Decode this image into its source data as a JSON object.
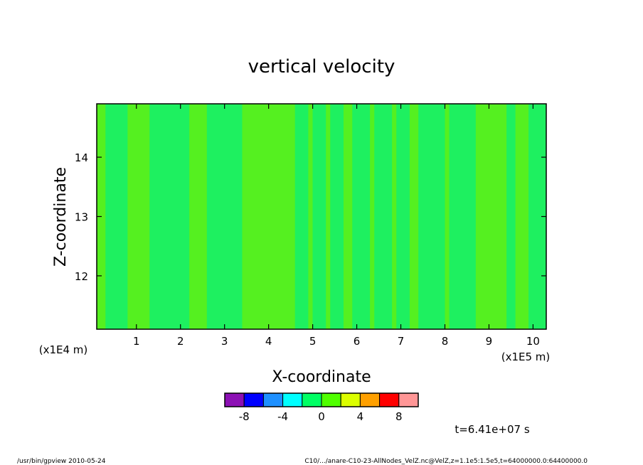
{
  "chart_data": {
    "type": "heatmap",
    "title": "vertical velocity",
    "xlabel": "X-coordinate",
    "ylabel": "Z-coordinate",
    "x_scale_label": "(x1E5 m)",
    "y_scale_label": "(x1E4 m)",
    "xlim": [
      0.1,
      10.3
    ],
    "ylim": [
      11.1,
      14.9
    ],
    "x_ticks": [
      1,
      2,
      3,
      4,
      5,
      6,
      7,
      8,
      9,
      10
    ],
    "x_tick_labels": [
      "1",
      "2",
      "3",
      "4",
      "5",
      "6",
      "7",
      "8",
      "9",
      "10"
    ],
    "y_ticks": [
      12,
      13,
      14
    ],
    "y_tick_labels": [
      "12",
      "13",
      "14"
    ],
    "colorbar": {
      "boundaries": [
        -10,
        -8,
        -6,
        -4,
        -2,
        0,
        2,
        4,
        6,
        8,
        10
      ],
      "tick_labels": [
        "-8",
        "-4",
        "0",
        "4",
        "8"
      ],
      "tick_values": [
        -8,
        -4,
        0,
        4,
        8
      ],
      "colors": [
        "#8c10b4",
        "#0000ff",
        "#1e90ff",
        "#00ffff",
        "#00ff64",
        "#50ff00",
        "#dcff00",
        "#ffa000",
        "#ff0000",
        "#ff9696"
      ]
    },
    "field_colors": {
      "light_green": "#55f020",
      "green": "#1ef060"
    },
    "field_bands": [
      {
        "x0": 0.1,
        "x1": 0.3,
        "value": 1
      },
      {
        "x0": 0.3,
        "x1": 0.8,
        "value": 0
      },
      {
        "x0": 0.8,
        "x1": 1.3,
        "value": 1
      },
      {
        "x0": 1.3,
        "x1": 2.2,
        "value": 0
      },
      {
        "x0": 2.2,
        "x1": 2.6,
        "value": 1
      },
      {
        "x0": 2.6,
        "x1": 3.4,
        "value": 0
      },
      {
        "x0": 3.4,
        "x1": 4.6,
        "value": 1
      },
      {
        "x0": 4.6,
        "x1": 4.9,
        "value": 0
      },
      {
        "x0": 4.9,
        "x1": 5.0,
        "value": 1
      },
      {
        "x0": 5.0,
        "x1": 5.3,
        "value": 0
      },
      {
        "x0": 5.3,
        "x1": 5.4,
        "value": 1
      },
      {
        "x0": 5.4,
        "x1": 5.7,
        "value": 0
      },
      {
        "x0": 5.7,
        "x1": 5.9,
        "value": 1
      },
      {
        "x0": 5.9,
        "x1": 6.3,
        "value": 0
      },
      {
        "x0": 6.3,
        "x1": 6.4,
        "value": 1
      },
      {
        "x0": 6.4,
        "x1": 6.8,
        "value": 0
      },
      {
        "x0": 6.8,
        "x1": 6.9,
        "value": 1
      },
      {
        "x0": 6.9,
        "x1": 7.2,
        "value": 0
      },
      {
        "x0": 7.2,
        "x1": 7.4,
        "value": 1
      },
      {
        "x0": 7.4,
        "x1": 8.0,
        "value": 0
      },
      {
        "x0": 8.0,
        "x1": 8.1,
        "value": 1
      },
      {
        "x0": 8.1,
        "x1": 8.7,
        "value": 0
      },
      {
        "x0": 8.7,
        "x1": 9.4,
        "value": 1
      },
      {
        "x0": 9.4,
        "x1": 9.6,
        "value": 0
      },
      {
        "x0": 9.6,
        "x1": 9.9,
        "value": 1
      },
      {
        "x0": 9.9,
        "x1": 10.3,
        "value": 0
      }
    ],
    "grid": false,
    "legend": "bottom-center"
  },
  "time_label": "t=6.41e+07 s",
  "footer": {
    "left": "/usr/bin/gpview   2010-05-24",
    "right": "C10/.../anare-C10-23-AllNodes_VelZ.nc@VelZ,z=1.1e5:1.5e5,t=64000000.0:64400000.0"
  }
}
